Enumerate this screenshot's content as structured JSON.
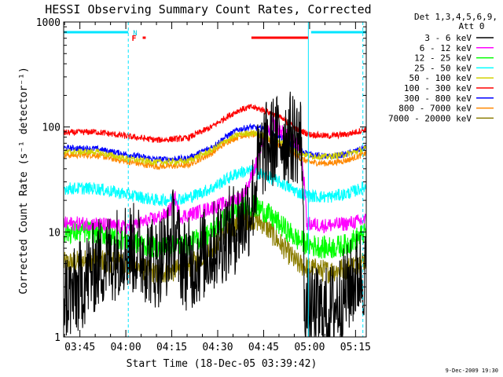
{
  "chart_data": {
    "type": "line",
    "title": "HESSI Observing Summary Count Rates, Corrected",
    "xlabel": "Start Time (18-Dec-05 03:39:42)",
    "ylabel": "Corrected Count Rate (s⁻¹ detector⁻¹)",
    "yscale": "log",
    "ylim": [
      1,
      1000
    ],
    "xlim_minutes": [
      219.7,
      318.5
    ],
    "xticks": [
      {
        "m": 225,
        "label": "03:45"
      },
      {
        "m": 240,
        "label": "04:00"
      },
      {
        "m": 255,
        "label": "04:15"
      },
      {
        "m": 270,
        "label": "04:30"
      },
      {
        "m": 285,
        "label": "04:45"
      },
      {
        "m": 300,
        "label": "05:00"
      },
      {
        "m": 315,
        "label": "05:15"
      }
    ],
    "yticks": [
      {
        "v": 1,
        "label": "1"
      },
      {
        "v": 10,
        "label": "10"
      },
      {
        "v": 100,
        "label": "100"
      },
      {
        "v": 1000,
        "label": "1000"
      }
    ],
    "legend_header": [
      "Det 1,3,4,5,6,9,",
      "Att 0"
    ],
    "legend_placement": "right",
    "series": [
      {
        "name": "3 - 6 keV",
        "color": "#000000",
        "noise": 0.45,
        "points": [
          [
            219.7,
            2.5
          ],
          [
            223,
            2.5
          ],
          [
            225,
            3
          ],
          [
            228,
            4
          ],
          [
            231,
            5
          ],
          [
            236,
            6
          ],
          [
            239,
            7.5
          ],
          [
            242,
            7
          ],
          [
            246,
            6
          ],
          [
            250,
            5
          ],
          [
            252,
            6
          ],
          [
            254,
            7
          ],
          [
            256,
            11
          ],
          [
            257,
            7
          ],
          [
            259,
            5
          ],
          [
            262,
            5
          ],
          [
            265,
            6
          ],
          [
            268,
            7
          ],
          [
            272,
            9
          ],
          [
            276,
            11
          ],
          [
            280,
            15
          ],
          [
            282,
            24
          ],
          [
            283,
            40
          ],
          [
            285,
            60
          ],
          [
            288,
            72
          ],
          [
            291,
            78
          ],
          [
            295,
            80
          ],
          [
            297.5,
            75
          ],
          [
            298.2,
            3
          ],
          [
            299,
            1.7
          ],
          [
            306,
            1.7
          ],
          [
            310,
            2.3
          ],
          [
            313,
            3
          ],
          [
            316,
            4
          ]
        ]
      },
      {
        "name": "6 - 12 keV",
        "color": "#ff00ff",
        "noise": 0.07,
        "points": [
          [
            219.7,
            12
          ],
          [
            230,
            12
          ],
          [
            240,
            11
          ],
          [
            248,
            13
          ],
          [
            253,
            14.5
          ],
          [
            255,
            17
          ],
          [
            256,
            22
          ],
          [
            257,
            16
          ],
          [
            258,
            14
          ],
          [
            262,
            15
          ],
          [
            268,
            17
          ],
          [
            273,
            19
          ],
          [
            278,
            22
          ],
          [
            280,
            28
          ],
          [
            282,
            40
          ],
          [
            284,
            60
          ],
          [
            286,
            85
          ],
          [
            288,
            110
          ],
          [
            290,
            95
          ],
          [
            293,
            80
          ],
          [
            297,
            65
          ],
          [
            298.5,
            25
          ],
          [
            299,
            12
          ],
          [
            305,
            11.5
          ],
          [
            312,
            12
          ],
          [
            318.5,
            13
          ]
        ]
      },
      {
        "name": "12 - 25 keV",
        "color": "#00ff00",
        "noise": 0.11,
        "points": [
          [
            219.7,
            10
          ],
          [
            230,
            10
          ],
          [
            240,
            8.5
          ],
          [
            250,
            7
          ],
          [
            260,
            7.5
          ],
          [
            268,
            10
          ],
          [
            273,
            14
          ],
          [
            277,
            17
          ],
          [
            281,
            18
          ],
          [
            285,
            16
          ],
          [
            290,
            12
          ],
          [
            296,
            8.5
          ],
          [
            300,
            7.5
          ],
          [
            306,
            7
          ],
          [
            312,
            7.5
          ],
          [
            318.5,
            10
          ]
        ]
      },
      {
        "name": "25 - 50 keV",
        "color": "#00ffff",
        "noise": 0.06,
        "points": [
          [
            219.7,
            26
          ],
          [
            230,
            26
          ],
          [
            240,
            23
          ],
          [
            250,
            20
          ],
          [
            260,
            21
          ],
          [
            268,
            26
          ],
          [
            273,
            32
          ],
          [
            277,
            37
          ],
          [
            281,
            38
          ],
          [
            285,
            35
          ],
          [
            290,
            30
          ],
          [
            296,
            24
          ],
          [
            300,
            22
          ],
          [
            306,
            21.5
          ],
          [
            312,
            23
          ],
          [
            318.5,
            27
          ]
        ]
      },
      {
        "name": "50 - 100 keV",
        "color": "#d2d200",
        "noise": 0.03,
        "points": [
          [
            219.7,
            58
          ],
          [
            230,
            58
          ],
          [
            240,
            50
          ],
          [
            250,
            46
          ],
          [
            260,
            47
          ],
          [
            268,
            60
          ],
          [
            273,
            75
          ],
          [
            277,
            85
          ],
          [
            281,
            88
          ],
          [
            285,
            84
          ],
          [
            290,
            74
          ],
          [
            296,
            58
          ],
          [
            300,
            53
          ],
          [
            306,
            52
          ],
          [
            312,
            55
          ],
          [
            318.5,
            62
          ]
        ]
      },
      {
        "name": "100 - 300 keV",
        "color": "#ff0000",
        "noise": 0.03,
        "points": [
          [
            219.7,
            88
          ],
          [
            230,
            90
          ],
          [
            240,
            82
          ],
          [
            250,
            75
          ],
          [
            260,
            78
          ],
          [
            268,
            100
          ],
          [
            273,
            125
          ],
          [
            277,
            145
          ],
          [
            281,
            155
          ],
          [
            285,
            145
          ],
          [
            290,
            125
          ],
          [
            296,
            95
          ],
          [
            300,
            85
          ],
          [
            306,
            82
          ],
          [
            312,
            85
          ],
          [
            318.5,
            95
          ]
        ]
      },
      {
        "name": "300 - 800 keV",
        "color": "#0000ff",
        "noise": 0.03,
        "points": [
          [
            219.7,
            63
          ],
          [
            230,
            62
          ],
          [
            240,
            55
          ],
          [
            250,
            49
          ],
          [
            260,
            50
          ],
          [
            268,
            64
          ],
          [
            273,
            82
          ],
          [
            277,
            95
          ],
          [
            281,
            100
          ],
          [
            285,
            95
          ],
          [
            290,
            82
          ],
          [
            296,
            62
          ],
          [
            300,
            55
          ],
          [
            306,
            52
          ],
          [
            312,
            55
          ],
          [
            318.5,
            64
          ]
        ]
      },
      {
        "name": "800 - 7000 keV",
        "color": "#ff8800",
        "noise": 0.03,
        "points": [
          [
            219.7,
            54
          ],
          [
            230,
            54
          ],
          [
            240,
            47
          ],
          [
            250,
            42
          ],
          [
            260,
            43
          ],
          [
            268,
            56
          ],
          [
            273,
            72
          ],
          [
            277,
            82
          ],
          [
            281,
            85
          ],
          [
            285,
            80
          ],
          [
            290,
            68
          ],
          [
            296,
            52
          ],
          [
            300,
            46
          ],
          [
            306,
            45
          ],
          [
            312,
            48
          ],
          [
            318.5,
            56
          ]
        ]
      },
      {
        "name": "7000 - 20000 keV",
        "color": "#8b7d00",
        "noise": 0.11,
        "points": [
          [
            219.7,
            5
          ],
          [
            230,
            5.5
          ],
          [
            240,
            5
          ],
          [
            250,
            4
          ],
          [
            260,
            4.5
          ],
          [
            268,
            7
          ],
          [
            273,
            10
          ],
          [
            277,
            12.5
          ],
          [
            281,
            13.5
          ],
          [
            285,
            12
          ],
          [
            290,
            8
          ],
          [
            296,
            5
          ],
          [
            300,
            4.5
          ],
          [
            306,
            4.2
          ],
          [
            312,
            4.5
          ],
          [
            318.5,
            5.5
          ]
        ]
      }
    ],
    "attenuator_bars": [
      {
        "start": 219.7,
        "end": 240.8,
        "label": ""
      },
      {
        "start": 300.5,
        "end": 318.5,
        "label": ""
      }
    ],
    "n_marker": {
      "at": 240.8,
      "label": "N"
    },
    "flare_marker": {
      "label": "F",
      "bars": [
        [
          245.5,
          246.5
        ],
        [
          281,
          299.5
        ]
      ]
    },
    "vlines": [
      {
        "m": 240.8,
        "style": "dashed"
      },
      {
        "m": 299.6,
        "style": "solid"
      },
      {
        "m": 317.4,
        "style": "dashed"
      }
    ]
  },
  "footer_timestamp": "9-Dec-2009 19:30"
}
